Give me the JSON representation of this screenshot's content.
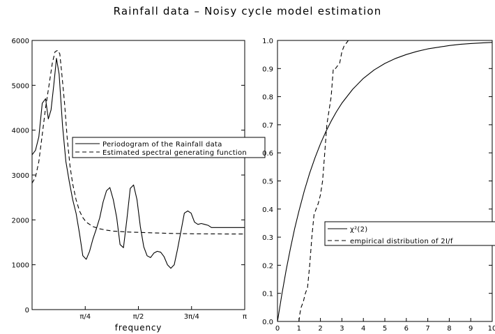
{
  "title": "Rainfall data – Noisy cycle model estimation",
  "chart_data": [
    {
      "type": "line",
      "xlabel": "frequency",
      "ylabel": "",
      "xlim": [
        0,
        3.14159
      ],
      "ylim": [
        0,
        6000
      ],
      "x_ticks": [
        {
          "value": 0.7854,
          "label": "π/4"
        },
        {
          "value": 1.5708,
          "label": "π/2"
        },
        {
          "value": 2.3562,
          "label": "3π/4"
        },
        {
          "value": 3.14159,
          "label": "π"
        }
      ],
      "y_ticks": [
        {
          "value": 0,
          "label": "0"
        },
        {
          "value": 1000,
          "label": "1000"
        },
        {
          "value": 2000,
          "label": "2000"
        },
        {
          "value": 3000,
          "label": "3000"
        },
        {
          "value": 4000,
          "label": "4000"
        },
        {
          "value": 5000,
          "label": "5000"
        },
        {
          "value": 6000,
          "label": "6000"
        }
      ],
      "legend_position": "middle",
      "series": [
        {
          "name": "Periodogram of the Rainfall data",
          "style": "solid",
          "x": [
            0.0,
            0.05,
            0.1,
            0.15,
            0.2,
            0.24,
            0.28,
            0.32,
            0.36,
            0.4,
            0.45,
            0.5,
            0.55,
            0.6,
            0.65,
            0.7,
            0.75,
            0.8,
            0.85,
            0.9,
            0.95,
            1.0,
            1.05,
            1.1,
            1.15,
            1.2,
            1.25,
            1.3,
            1.35,
            1.4,
            1.45,
            1.5,
            1.55,
            1.6,
            1.65,
            1.7,
            1.75,
            1.8,
            1.85,
            1.9,
            1.95,
            2.0,
            2.05,
            2.1,
            2.15,
            2.2,
            2.25,
            2.3,
            2.35,
            2.4,
            2.45,
            2.5,
            2.55,
            2.6,
            2.65,
            2.7,
            2.75,
            2.8,
            2.85,
            2.9,
            2.95,
            3.0,
            3.05,
            3.1,
            3.14
          ],
          "values": [
            3450,
            3550,
            3850,
            4600,
            4700,
            4250,
            4450,
            5000,
            5600,
            5250,
            4100,
            3300,
            2850,
            2450,
            2150,
            1700,
            1200,
            1120,
            1300,
            1580,
            1800,
            2050,
            2400,
            2650,
            2720,
            2450,
            2050,
            1450,
            1380,
            2000,
            2700,
            2780,
            2450,
            1850,
            1400,
            1200,
            1160,
            1260,
            1300,
            1280,
            1180,
            1000,
            920,
            1000,
            1350,
            1750,
            2150,
            2200,
            2150,
            1950,
            1900,
            1920,
            1900,
            1880,
            1830,
            1830,
            1830,
            1830,
            1830,
            1830,
            1830,
            1830,
            1830,
            1830,
            1830
          ]
        },
        {
          "name": "Estimated spectral generating function",
          "style": "dashed",
          "x": [
            0.0,
            0.05,
            0.1,
            0.15,
            0.2,
            0.25,
            0.3,
            0.34,
            0.38,
            0.41,
            0.44,
            0.48,
            0.52,
            0.56,
            0.6,
            0.65,
            0.7,
            0.75,
            0.8,
            0.9,
            1.0,
            1.1,
            1.2,
            1.3,
            1.4,
            1.5,
            1.6,
            1.8,
            2.0,
            2.2,
            2.4,
            2.6,
            2.8,
            3.0,
            3.14
          ],
          "values": [
            2820,
            2950,
            3300,
            3900,
            4500,
            5000,
            5500,
            5750,
            5780,
            5700,
            5250,
            4600,
            3800,
            3200,
            2800,
            2450,
            2200,
            2050,
            1950,
            1850,
            1800,
            1770,
            1750,
            1740,
            1730,
            1725,
            1720,
            1710,
            1700,
            1695,
            1690,
            1688,
            1686,
            1685,
            1685
          ]
        }
      ]
    },
    {
      "type": "line",
      "xlabel": "",
      "ylabel": "",
      "xlim": [
        0,
        10
      ],
      "ylim": [
        0,
        1
      ],
      "x_ticks": [
        {
          "value": 0,
          "label": "0"
        },
        {
          "value": 1,
          "label": "1"
        },
        {
          "value": 2,
          "label": "2"
        },
        {
          "value": 3,
          "label": "3"
        },
        {
          "value": 4,
          "label": "4"
        },
        {
          "value": 5,
          "label": "5"
        },
        {
          "value": 6,
          "label": "6"
        },
        {
          "value": 7,
          "label": "7"
        },
        {
          "value": 8,
          "label": "8"
        },
        {
          "value": 9,
          "label": "9"
        },
        {
          "value": 10,
          "label": "10"
        }
      ],
      "y_ticks": [
        {
          "value": 0,
          "label": "0.0"
        },
        {
          "value": 0.1,
          "label": "0.1"
        },
        {
          "value": 0.2,
          "label": "0.2"
        },
        {
          "value": 0.3,
          "label": "0.3"
        },
        {
          "value": 0.4,
          "label": "0.4"
        },
        {
          "value": 0.5,
          "label": "0.5"
        },
        {
          "value": 0.6,
          "label": "0.6"
        },
        {
          "value": 0.7,
          "label": "0.7"
        },
        {
          "value": 0.8,
          "label": "0.8"
        },
        {
          "value": 0.9,
          "label": "0.9"
        },
        {
          "value": 1.0,
          "label": "1.0"
        }
      ],
      "legend_position": "middle-right",
      "series": [
        {
          "name": "χ²(2)",
          "style": "solid",
          "x": [
            0,
            0.2,
            0.4,
            0.6,
            0.8,
            1.0,
            1.25,
            1.5,
            1.75,
            2.0,
            2.25,
            2.5,
            2.75,
            3.0,
            3.5,
            4.0,
            4.5,
            5.0,
            5.5,
            6.0,
            6.5,
            7.0,
            7.5,
            8.0,
            8.5,
            9.0,
            9.5,
            10.0
          ],
          "values": [
            0,
            0.095,
            0.181,
            0.259,
            0.33,
            0.393,
            0.465,
            0.528,
            0.583,
            0.632,
            0.675,
            0.713,
            0.747,
            0.777,
            0.826,
            0.865,
            0.895,
            0.918,
            0.936,
            0.95,
            0.961,
            0.97,
            0.976,
            0.982,
            0.986,
            0.989,
            0.991,
            0.993
          ]
        },
        {
          "name": "empirical distribution of 2I/f",
          "style": "dashed",
          "x": [
            1.0,
            1.05,
            1.1,
            1.2,
            1.3,
            1.4,
            1.5,
            1.6,
            1.7,
            1.8,
            1.9,
            2.0,
            2.1,
            2.2,
            2.3,
            2.4,
            2.5,
            2.6,
            2.7,
            2.8,
            2.9,
            3.0,
            3.1,
            3.2,
            3.3
          ],
          "values": [
            0.0,
            0.03,
            0.05,
            0.07,
            0.1,
            0.12,
            0.2,
            0.3,
            0.38,
            0.4,
            0.42,
            0.45,
            0.5,
            0.6,
            0.7,
            0.75,
            0.8,
            0.9,
            0.9,
            0.91,
            0.92,
            0.96,
            0.98,
            0.99,
            1.0
          ]
        }
      ]
    }
  ]
}
